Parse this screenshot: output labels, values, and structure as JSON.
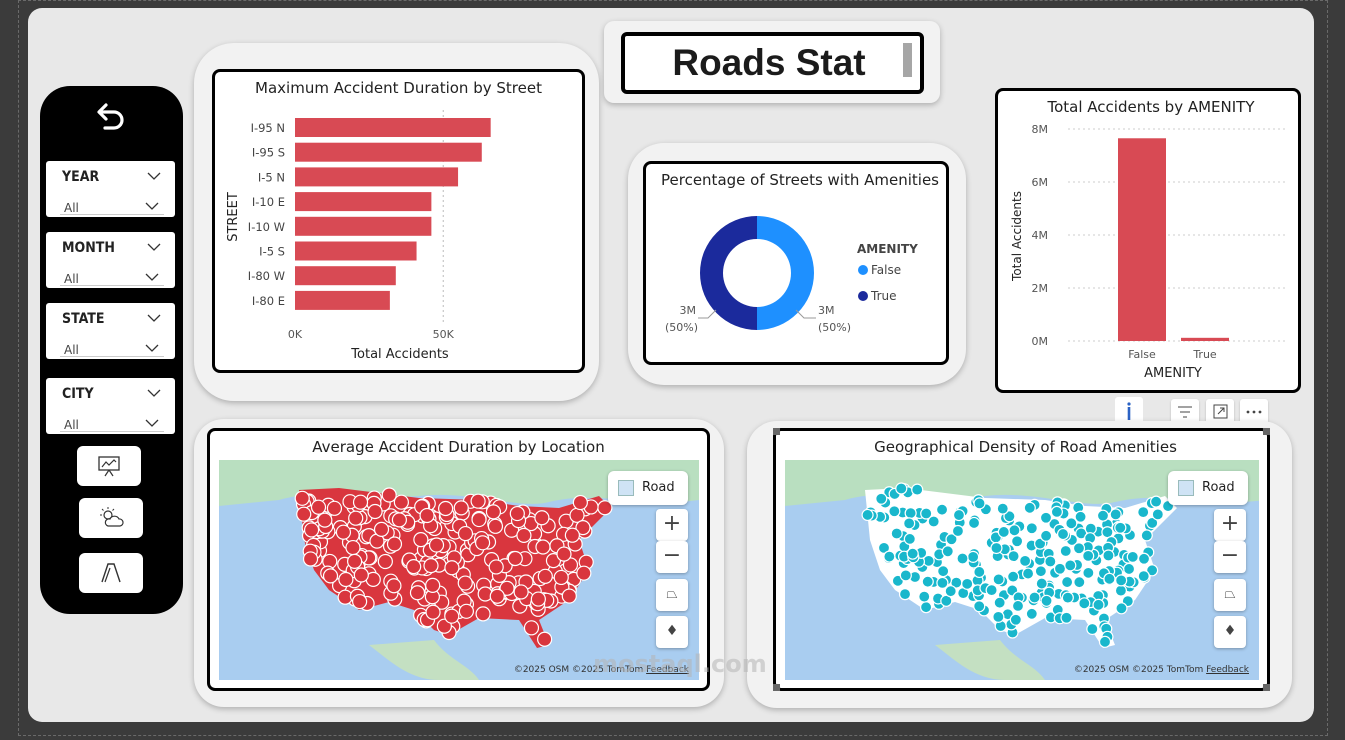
{
  "title": "Roads Stat",
  "slicers": [
    {
      "label": "YEAR",
      "value": "All"
    },
    {
      "label": "MONTH",
      "value": "All"
    },
    {
      "label": "STATE",
      "value": "All"
    },
    {
      "label": "CITY",
      "value": "All"
    }
  ],
  "icons": {
    "back": "back-arrow-icon",
    "nav": [
      "presentation-chart-icon",
      "weather-icon",
      "road-icon"
    ],
    "toolbar": [
      "info-icon",
      "filter-icon",
      "focus-mode-icon",
      "more-options-icon"
    ],
    "map_controls": [
      "zoom-in-icon",
      "zoom-out-icon",
      "tilt-icon",
      "compass-icon"
    ]
  },
  "colors": {
    "bar": "#d84a54",
    "false": "#1e90ff",
    "true": "#1b2a9c",
    "amenity_dot": "#19b7cc",
    "accident_dot": "#d9363e"
  },
  "street_chart": {
    "title": "Maximum Accident Duration by Street",
    "ylabel": "STREET",
    "xlabel": "Total Accidents",
    "x_ticks": [
      "0K",
      "50K"
    ]
  },
  "donut": {
    "title": "Percentage of Streets with Amenities",
    "legend_title": "AMENITY",
    "left_label": "3M",
    "left_pct": "(50%)",
    "right_label": "3M",
    "right_pct": "(50%)"
  },
  "amenity_chart": {
    "title": "Total Accidents by AMENITY",
    "ylabel": "Total Accidents",
    "xlabel": "AMENITY",
    "y_ticks": [
      "8M",
      "6M",
      "4M",
      "2M",
      "0M"
    ]
  },
  "map1": {
    "title": "Average Accident Duration by Location",
    "style_label": "Road",
    "credit": "©2025 OSM  ©2025 TomTom",
    "feedback": "Feedback"
  },
  "map2": {
    "title": "Geographical Density of Road Amenities",
    "style_label": "Road",
    "credit": "©2025 OSM  ©2025 TomTom",
    "feedback": "Feedback"
  },
  "watermark": "mostaql.com",
  "chart_data": [
    {
      "type": "bar",
      "orientation": "horizontal",
      "title": "Maximum Accident Duration by Street",
      "categories": [
        "I-95 N",
        "I-95 S",
        "I-5 N",
        "I-10 E",
        "I-10 W",
        "I-5 S",
        "I-80 W",
        "I-80 E"
      ],
      "values": [
        66000,
        63000,
        55000,
        46000,
        46000,
        41000,
        34000,
        32000
      ],
      "xlabel": "Total Accidents",
      "ylabel": "STREET",
      "xlim": [
        0,
        85000
      ]
    },
    {
      "type": "pie",
      "title": "Percentage of Streets with Amenities",
      "categories": [
        "False",
        "True"
      ],
      "values": [
        3000000,
        3000000
      ],
      "percents": [
        50,
        50
      ]
    },
    {
      "type": "bar",
      "title": "Total Accidents by AMENITY",
      "categories": [
        "False",
        "True"
      ],
      "values": [
        7650000,
        120000
      ],
      "xlabel": "AMENITY",
      "ylabel": "Total Accidents",
      "ylim": [
        0,
        8000000
      ]
    }
  ]
}
